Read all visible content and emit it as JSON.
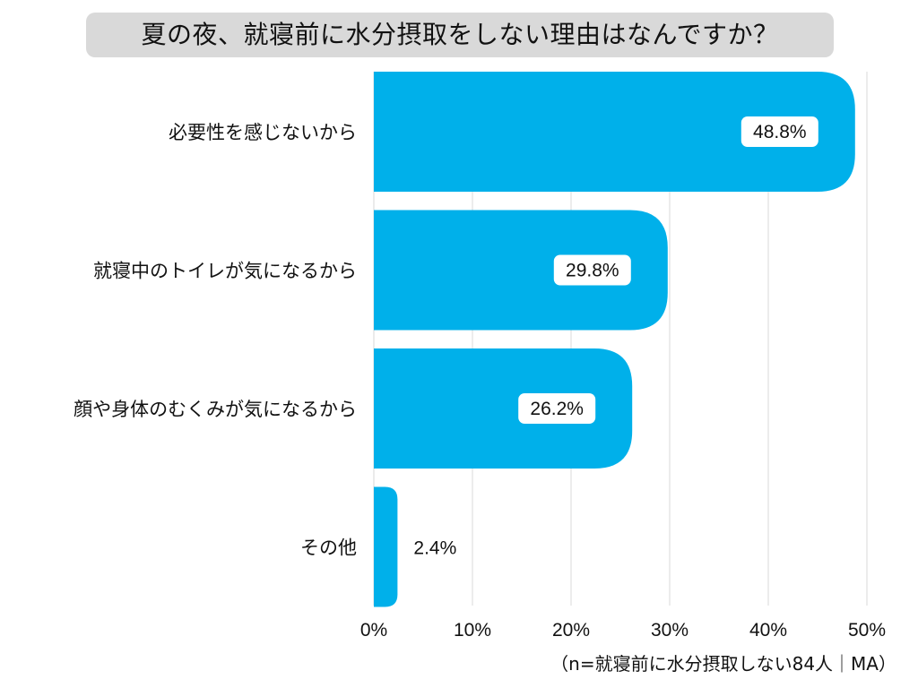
{
  "chart_data": {
    "type": "bar",
    "orientation": "horizontal",
    "title": "夏の夜、就寝前に水分摂取をしない理由はなんですか？",
    "categories": [
      "必要性を感じないから",
      "就寝中のトイレが気になるから",
      "顔や身体のむくみが気になるから",
      "その他"
    ],
    "values": [
      48.8,
      29.8,
      26.2,
      2.4
    ],
    "data_labels": [
      "48.8%",
      "29.8%",
      "26.2%",
      "2.4%"
    ],
    "x_ticks": [
      "0%",
      "10%",
      "20%",
      "30%",
      "40%",
      "50%"
    ],
    "xlim": [
      0,
      50
    ],
    "grid": true,
    "bar_color": "#00b0ea",
    "note": "（n=就寝前に水分摂取しない84人｜MA）"
  }
}
